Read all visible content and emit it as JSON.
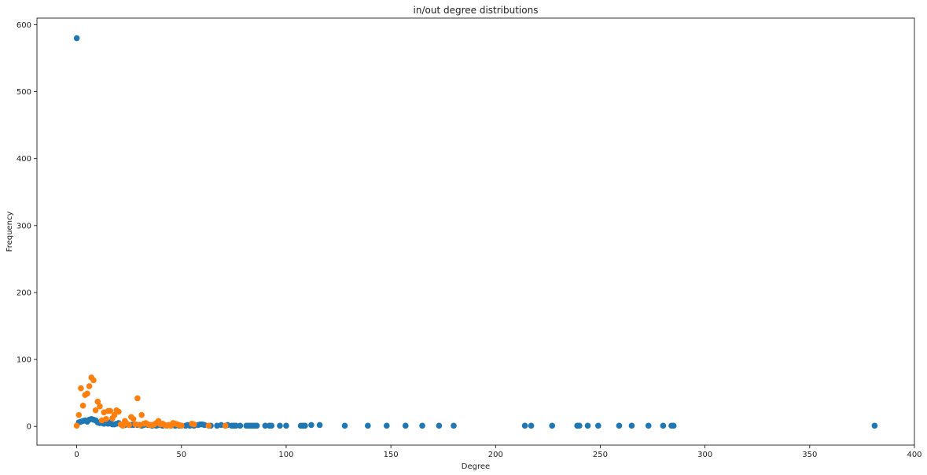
{
  "chart_data": {
    "type": "scatter",
    "title": "in/out degree distributions",
    "xlabel": "Degree",
    "ylabel": "Frequency",
    "xlim": [
      -19,
      400
    ],
    "ylim": [
      -28,
      610
    ],
    "xticks": [
      0,
      50,
      100,
      150,
      200,
      250,
      300,
      350,
      400
    ],
    "yticks": [
      0,
      100,
      200,
      300,
      400,
      500,
      600
    ],
    "grid": false,
    "legend": "none",
    "series": [
      {
        "color": "#1f77b4",
        "points": [
          [
            0,
            580
          ],
          [
            1,
            6
          ],
          [
            2,
            7
          ],
          [
            3,
            8
          ],
          [
            4,
            9
          ],
          [
            5,
            7
          ],
          [
            6,
            10
          ],
          [
            7,
            11
          ],
          [
            8,
            10
          ],
          [
            9,
            9
          ],
          [
            10,
            6
          ],
          [
            11,
            5
          ],
          [
            12,
            5
          ],
          [
            13,
            4
          ],
          [
            14,
            5
          ],
          [
            15,
            4
          ],
          [
            16,
            6
          ],
          [
            17,
            3
          ],
          [
            18,
            3
          ],
          [
            19,
            4
          ],
          [
            20,
            5
          ],
          [
            21,
            3
          ],
          [
            22,
            2
          ],
          [
            23,
            2
          ],
          [
            24,
            3
          ],
          [
            25,
            2
          ],
          [
            26,
            2
          ],
          [
            27,
            2
          ],
          [
            28,
            3
          ],
          [
            29,
            2
          ],
          [
            30,
            2
          ],
          [
            31,
            1
          ],
          [
            32,
            2
          ],
          [
            33,
            3
          ],
          [
            34,
            2
          ],
          [
            35,
            2
          ],
          [
            36,
            1
          ],
          [
            37,
            2
          ],
          [
            38,
            1
          ],
          [
            39,
            2
          ],
          [
            40,
            2
          ],
          [
            41,
            1
          ],
          [
            42,
            2
          ],
          [
            43,
            1
          ],
          [
            44,
            2
          ],
          [
            45,
            1
          ],
          [
            46,
            2
          ],
          [
            47,
            1
          ],
          [
            48,
            2
          ],
          [
            49,
            1
          ],
          [
            50,
            1
          ],
          [
            52,
            1
          ],
          [
            53,
            2
          ],
          [
            54,
            1
          ],
          [
            55,
            2
          ],
          [
            56,
            1
          ],
          [
            58,
            2
          ],
          [
            59,
            3
          ],
          [
            60,
            3
          ],
          [
            61,
            2
          ],
          [
            63,
            1
          ],
          [
            64,
            1
          ],
          [
            67,
            1
          ],
          [
            69,
            2
          ],
          [
            71,
            1
          ],
          [
            72,
            2
          ],
          [
            74,
            1
          ],
          [
            75,
            1
          ],
          [
            76,
            1
          ],
          [
            78,
            1
          ],
          [
            81,
            1
          ],
          [
            82,
            1
          ],
          [
            83,
            1
          ],
          [
            84,
            1
          ],
          [
            85,
            1
          ],
          [
            86,
            1
          ],
          [
            90,
            1
          ],
          [
            92,
            1
          ],
          [
            93,
            1
          ],
          [
            97,
            1
          ],
          [
            100,
            1
          ],
          [
            107,
            1
          ],
          [
            108,
            1
          ],
          [
            109,
            1
          ],
          [
            112,
            2
          ],
          [
            116,
            2
          ],
          [
            128,
            1
          ],
          [
            139,
            1
          ],
          [
            148,
            1
          ],
          [
            157,
            1
          ],
          [
            165,
            1
          ],
          [
            173,
            1
          ],
          [
            180,
            1
          ],
          [
            214,
            1
          ],
          [
            217,
            1
          ],
          [
            227,
            1
          ],
          [
            239,
            1
          ],
          [
            240,
            1
          ],
          [
            244,
            1
          ],
          [
            249,
            1
          ],
          [
            259,
            1
          ],
          [
            265,
            1
          ],
          [
            273,
            1
          ],
          [
            280,
            1
          ],
          [
            284,
            1
          ],
          [
            285,
            1
          ],
          [
            381,
            1
          ]
        ]
      },
      {
        "color": "#ff7f0e",
        "points": [
          [
            0,
            1
          ],
          [
            1,
            17
          ],
          [
            2,
            57
          ],
          [
            3,
            31
          ],
          [
            4,
            47
          ],
          [
            5,
            49
          ],
          [
            6,
            60
          ],
          [
            7,
            73
          ],
          [
            8,
            69
          ],
          [
            9,
            24
          ],
          [
            10,
            37
          ],
          [
            11,
            30
          ],
          [
            12,
            9
          ],
          [
            13,
            21
          ],
          [
            14,
            11
          ],
          [
            15,
            23
          ],
          [
            16,
            23
          ],
          [
            17,
            12
          ],
          [
            18,
            17
          ],
          [
            19,
            24
          ],
          [
            20,
            22
          ],
          [
            21,
            3
          ],
          [
            22,
            1
          ],
          [
            23,
            8
          ],
          [
            24,
            4
          ],
          [
            25,
            2
          ],
          [
            26,
            14
          ],
          [
            27,
            11
          ],
          [
            28,
            3
          ],
          [
            29,
            42
          ],
          [
            30,
            2
          ],
          [
            31,
            17
          ],
          [
            32,
            4
          ],
          [
            33,
            5
          ],
          [
            34,
            3
          ],
          [
            35,
            2
          ],
          [
            36,
            2
          ],
          [
            37,
            3
          ],
          [
            38,
            5
          ],
          [
            39,
            8
          ],
          [
            40,
            3
          ],
          [
            41,
            4
          ],
          [
            42,
            2
          ],
          [
            43,
            1
          ],
          [
            44,
            2
          ],
          [
            45,
            1
          ],
          [
            46,
            5
          ],
          [
            47,
            4
          ],
          [
            48,
            3
          ],
          [
            49,
            2
          ],
          [
            50,
            1
          ],
          [
            55,
            4
          ],
          [
            56,
            3
          ],
          [
            63,
            1
          ],
          [
            71,
            1
          ]
        ]
      }
    ]
  }
}
